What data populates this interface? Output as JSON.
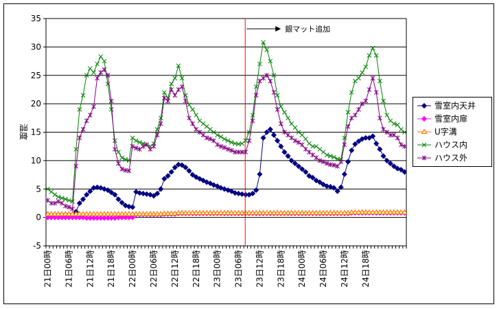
{
  "chart_data": {
    "type": "line",
    "title": "",
    "xlabel": "",
    "ylabel": "温度",
    "ylim": [
      -5,
      35
    ],
    "yticks": [
      -5,
      0,
      5,
      10,
      15,
      20,
      25,
      30,
      35
    ],
    "grid": true,
    "legend_position": "right",
    "x_tick_labels": [
      "21日00時",
      "21日06時",
      "21日12時",
      "21日18時",
      "22日00時",
      "22日06時",
      "22日12時",
      "22日18時",
      "23日00時",
      "23日06時",
      "23日12時",
      "23日18時",
      "24日00時",
      "24日06時",
      "24日12時",
      "24日18時"
    ],
    "annotation": {
      "text": "銀マット追加",
      "x_index": 56
    },
    "series": [
      {
        "name": "雪室内天井",
        "color": "#000080",
        "marker": "diamond",
        "values": [
          0.5,
          0.5,
          0.5,
          0.5,
          0.5,
          0.5,
          0.5,
          0.5,
          1.0,
          2.5,
          3.2,
          4.0,
          4.6,
          5.2,
          5.3,
          5.2,
          5.0,
          4.8,
          4.4,
          4.0,
          3.2,
          2.6,
          2.1,
          1.9,
          1.8,
          4.5,
          4.3,
          4.2,
          4.1,
          4.0,
          3.8,
          4.2,
          5.0,
          6.8,
          7.3,
          8.0,
          8.8,
          9.3,
          9.2,
          8.8,
          8.2,
          7.5,
          7.1,
          6.8,
          6.5,
          6.2,
          6.0,
          5.7,
          5.5,
          5.2,
          5.0,
          4.8,
          4.6,
          4.3,
          4.2,
          4.1,
          4.0,
          4.0,
          4.2,
          4.8,
          7.6,
          14.0,
          15.0,
          15.5,
          14.5,
          13.5,
          12.5,
          11.5,
          10.8,
          10.0,
          9.5,
          9.0,
          8.5,
          8.0,
          7.3,
          7.0,
          6.5,
          6.2,
          5.8,
          5.5,
          5.4,
          5.2,
          4.6,
          5.3,
          7.6,
          9.8,
          11.8,
          12.9,
          13.4,
          13.8,
          14.0,
          14.0,
          14.3,
          13.0,
          12.0,
          10.8,
          10.0,
          9.5,
          9.0,
          8.6,
          8.4,
          8.0
        ]
      },
      {
        "name": "雪室内扉",
        "color": "#ff00ff",
        "marker": "diamond",
        "values": [
          0.0,
          0.0,
          0.0,
          0.0,
          0.0,
          0.0,
          0.0,
          0.0,
          0.0,
          0.0,
          0.0,
          -0.1,
          -0.1,
          -0.1,
          -0.1,
          -0.1,
          -0.1,
          -0.1,
          -0.1,
          -0.1,
          0.0,
          0.0,
          0.0,
          0.0,
          0.0,
          0.5,
          0.5,
          0.5,
          0.5,
          0.5,
          0.5,
          0.5,
          0.5,
          0.6,
          0.6,
          0.6,
          0.6,
          0.7,
          0.7,
          0.7,
          0.7,
          0.7,
          0.7,
          0.7,
          0.7,
          0.7,
          0.7,
          0.7,
          0.7,
          0.7,
          0.7,
          0.7,
          0.7,
          0.7,
          0.7,
          0.7,
          0.7,
          0.7,
          0.7,
          0.7,
          0.7,
          0.7,
          0.7,
          0.7,
          0.7,
          0.7,
          0.7,
          0.7,
          0.7,
          0.7,
          0.7,
          0.7,
          0.7,
          0.7,
          0.7,
          0.7,
          0.7,
          0.7,
          0.7,
          0.7,
          0.7,
          0.7,
          0.7,
          0.7,
          0.7,
          0.7,
          0.8,
          0.8,
          0.8,
          0.8,
          0.8,
          0.8,
          0.8,
          0.8,
          0.8,
          0.8,
          0.8,
          0.8,
          0.8,
          0.8,
          0.8,
          0.8
        ]
      },
      {
        "name": "U字溝",
        "color": "#ff6600",
        "marker": "triangle",
        "values": [
          0.6,
          0.6,
          0.6,
          0.6,
          0.6,
          0.6,
          0.6,
          0.6,
          0.6,
          0.6,
          0.6,
          0.6,
          0.6,
          0.6,
          0.6,
          0.6,
          0.6,
          0.6,
          0.6,
          0.6,
          0.6,
          0.6,
          0.6,
          0.6,
          0.6,
          0.6,
          0.6,
          0.6,
          0.6,
          0.6,
          0.6,
          0.6,
          0.6,
          0.7,
          0.7,
          0.7,
          0.7,
          0.8,
          0.8,
          0.8,
          0.8,
          0.8,
          0.8,
          0.8,
          0.8,
          0.8,
          0.8,
          0.8,
          0.8,
          0.8,
          0.8,
          0.8,
          0.8,
          0.8,
          0.8,
          0.8,
          0.8,
          0.8,
          0.8,
          0.8,
          0.8,
          0.8,
          0.8,
          0.8,
          0.8,
          0.8,
          0.8,
          0.8,
          0.8,
          0.8,
          0.8,
          0.8,
          0.8,
          0.8,
          0.8,
          0.8,
          0.8,
          0.8,
          0.8,
          0.8,
          0.8,
          0.8,
          0.8,
          0.8,
          0.8,
          0.8,
          0.9,
          0.9,
          0.9,
          0.9,
          0.9,
          0.9,
          0.9,
          0.9,
          0.9,
          0.9,
          0.9,
          0.9,
          0.9,
          0.9,
          0.9,
          0.9
        ]
      },
      {
        "name": "ハウス内",
        "color": "#008000",
        "marker": "x",
        "values": [
          5.0,
          4.5,
          4.0,
          3.6,
          3.4,
          3.2,
          3.0,
          2.8,
          12.0,
          19.0,
          21.5,
          25.0,
          26.2,
          25.5,
          27.0,
          28.3,
          27.5,
          23.5,
          19.0,
          13.5,
          11.5,
          10.5,
          10.2,
          10.0,
          14.0,
          13.5,
          13.2,
          13.0,
          12.8,
          12.5,
          13.0,
          15.5,
          17.5,
          22.0,
          21.0,
          23.5,
          24.5,
          26.7,
          24.5,
          21.5,
          19.8,
          19.0,
          18.0,
          17.0,
          16.5,
          16.0,
          15.5,
          15.0,
          14.5,
          14.2,
          13.8,
          13.5,
          13.2,
          13.0,
          12.9,
          13.0,
          13.5,
          15.0,
          18.0,
          23.0,
          27.0,
          30.8,
          29.5,
          27.5,
          25.0,
          21.5,
          19.5,
          18.5,
          17.5,
          16.5,
          15.8,
          15.0,
          14.5,
          13.8,
          13.0,
          12.5,
          12.5,
          12.0,
          11.5,
          11.0,
          10.8,
          10.6,
          10.3,
          10.2,
          14.0,
          18.5,
          22.0,
          24.0,
          24.5,
          25.5,
          26.5,
          28.5,
          29.8,
          28.5,
          24.0,
          20.5,
          18.0,
          17.0,
          16.5,
          16.3,
          15.5,
          15.0
        ]
      },
      {
        "name": "ハウス外",
        "color": "#800080",
        "marker": "star",
        "values": [
          3.0,
          2.5,
          2.5,
          2.8,
          2.5,
          2.0,
          1.8,
          1.5,
          9.0,
          14.0,
          15.5,
          17.0,
          18.0,
          19.5,
          24.5,
          25.5,
          26.0,
          25.0,
          20.5,
          12.0,
          9.5,
          8.5,
          8.3,
          8.2,
          12.5,
          12.2,
          12.0,
          12.5,
          12.8,
          12.0,
          12.5,
          14.5,
          16.5,
          21.0,
          20.5,
          22.5,
          21.5,
          22.5,
          23.0,
          20.5,
          17.5,
          16.5,
          15.5,
          15.0,
          14.5,
          14.0,
          13.8,
          13.5,
          12.8,
          12.5,
          12.3,
          12.0,
          11.8,
          11.5,
          11.5,
          11.5,
          11.5,
          13.5,
          17.0,
          21.5,
          24.0,
          24.5,
          25.0,
          24.0,
          22.0,
          19.0,
          16.5,
          15.0,
          14.5,
          14.0,
          13.5,
          13.2,
          12.8,
          12.0,
          11.5,
          11.0,
          10.5,
          10.0,
          9.8,
          9.5,
          9.3,
          9.2,
          9.0,
          9.8,
          12.8,
          16.0,
          17.5,
          18.0,
          19.0,
          20.0,
          20.5,
          22.5,
          24.5,
          22.0,
          17.5,
          15.5,
          15.0,
          14.5,
          14.5,
          14.0,
          12.8,
          12.5
        ]
      }
    ]
  }
}
